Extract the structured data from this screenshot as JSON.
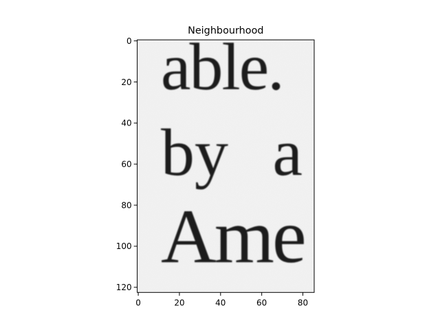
{
  "chart_data": {
    "type": "heatmap",
    "title": "Neighbourhood",
    "xlabel": "",
    "ylabel": "",
    "colormap": "gray",
    "image_content_text": [
      "able.",
      "by a",
      "Ame"
    ],
    "image_size": {
      "width": 86,
      "height": 123
    },
    "xlim": [
      -0.5,
      85.5
    ],
    "ylim": [
      122.5,
      -0.5
    ],
    "x_ticks": [
      0,
      20,
      40,
      60,
      80
    ],
    "y_ticks": [
      0,
      20,
      40,
      60,
      80,
      100,
      120
    ],
    "grid": false
  }
}
